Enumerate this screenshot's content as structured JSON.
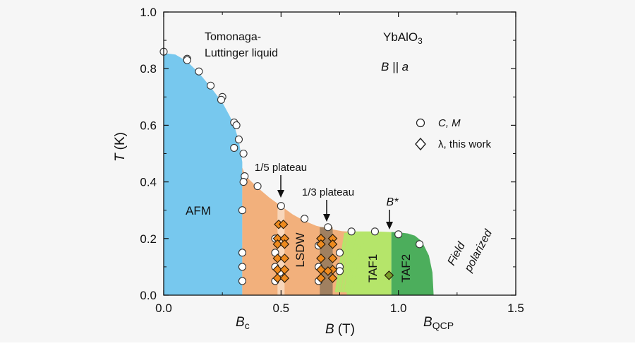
{
  "chart_data": {
    "type": "scatter",
    "xlabel_var": "B",
    "xlabel_unit": "(T)",
    "ylabel_var": "T",
    "ylabel_unit": "(K)",
    "xlim": [
      0,
      1.5
    ],
    "ylim": [
      0,
      1.0
    ],
    "x_ticks": [
      0.0,
      0.5,
      1.0,
      1.5
    ],
    "x_tick_labels": [
      "0.0",
      "0.5",
      "1.0",
      "1.5"
    ],
    "y_ticks": [
      0.0,
      0.2,
      0.4,
      0.6,
      0.8,
      1.0
    ],
    "y_tick_labels": [
      "0.0",
      "0.2",
      "0.4",
      "0.6",
      "0.8",
      "1.0"
    ],
    "special_x_labels": [
      {
        "main": "B",
        "sub": "c",
        "x": 0.335
      },
      {
        "main": "B",
        "sub": "QCP",
        "x": 1.15
      }
    ],
    "compound": {
      "main": "YbAlO",
      "sub": "3"
    },
    "field_condition": "B || a",
    "legend": {
      "position": "right",
      "entries": [
        {
          "marker": "circle",
          "label": "C, M"
        },
        {
          "marker": "diamond",
          "label": "λ, this work"
        }
      ]
    },
    "phase_labels": {
      "tl": [
        "Tomonaga-",
        "Luttinger liquid"
      ],
      "afm": "AFM",
      "lsdw": "LSDW",
      "taf1": "TAF1",
      "taf2": "TAF2",
      "field": [
        "Field",
        "polarized"
      ]
    },
    "annotations": [
      {
        "text": "1/5 plateau",
        "x": 0.5
      },
      {
        "text": "1/3 plateau",
        "x": 0.695
      },
      {
        "text": "B*",
        "x": 0.965
      }
    ],
    "phase_colors": {
      "afm": "#77c8ee",
      "lsdw": "#f2b07c",
      "plateau15": "#f8d6ba",
      "plateau13": "#a08060",
      "taf1": "#b5e56a",
      "taf2": "#4cae5c"
    },
    "series": [
      {
        "name": "C, M",
        "marker": "circle",
        "points": [
          [
            0.0,
            0.86
          ],
          [
            0.1,
            0.835
          ],
          [
            0.1,
            0.83
          ],
          [
            0.15,
            0.79
          ],
          [
            0.2,
            0.74
          ],
          [
            0.25,
            0.7
          ],
          [
            0.245,
            0.69
          ],
          [
            0.3,
            0.61
          ],
          [
            0.31,
            0.6
          ],
          [
            0.32,
            0.55
          ],
          [
            0.3,
            0.52
          ],
          [
            0.34,
            0.5
          ],
          [
            0.345,
            0.42
          ],
          [
            0.34,
            0.4
          ],
          [
            0.4,
            0.385
          ],
          [
            0.335,
            0.3
          ],
          [
            0.5,
            0.315
          ],
          [
            0.6,
            0.27
          ],
          [
            0.7,
            0.24
          ],
          [
            0.8,
            0.225
          ],
          [
            0.9,
            0.225
          ],
          [
            1.0,
            0.215
          ],
          [
            1.09,
            0.18
          ],
          [
            0.335,
            0.15
          ],
          [
            0.335,
            0.1
          ],
          [
            0.335,
            0.05
          ],
          [
            0.475,
            0.2
          ],
          [
            0.475,
            0.15
          ],
          [
            0.475,
            0.1
          ],
          [
            0.475,
            0.05
          ],
          [
            0.495,
            0.08
          ],
          [
            0.66,
            0.175
          ],
          [
            0.66,
            0.1
          ],
          [
            0.66,
            0.05
          ],
          [
            0.75,
            0.15
          ],
          [
            0.75,
            0.1
          ],
          [
            0.75,
            0.085
          ]
        ]
      },
      {
        "name": "λ, this work",
        "marker": "diamond",
        "points": [
          [
            0.49,
            0.25
          ],
          [
            0.51,
            0.25
          ],
          [
            0.485,
            0.2
          ],
          [
            0.515,
            0.2
          ],
          [
            0.485,
            0.18
          ],
          [
            0.515,
            0.18
          ],
          [
            0.485,
            0.13
          ],
          [
            0.515,
            0.13
          ],
          [
            0.485,
            0.09
          ],
          [
            0.515,
            0.09
          ],
          [
            0.485,
            0.06
          ],
          [
            0.515,
            0.06
          ],
          [
            0.67,
            0.2
          ],
          [
            0.72,
            0.2
          ],
          [
            0.67,
            0.18
          ],
          [
            0.72,
            0.18
          ],
          [
            0.67,
            0.13
          ],
          [
            0.72,
            0.13
          ],
          [
            0.67,
            0.09
          ],
          [
            0.72,
            0.09
          ],
          [
            0.67,
            0.06
          ],
          [
            0.72,
            0.06
          ],
          [
            0.7,
            0.085
          ],
          [
            0.96,
            0.07
          ]
        ]
      }
    ]
  }
}
